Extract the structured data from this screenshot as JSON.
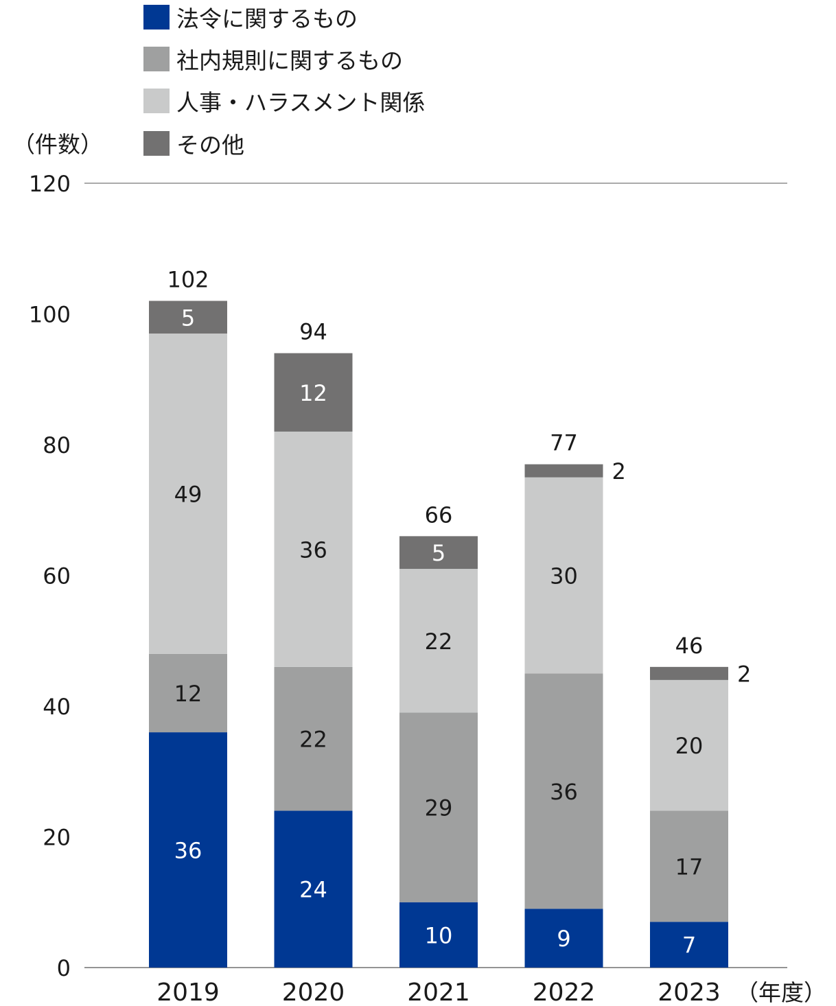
{
  "chart_data": {
    "type": "bar",
    "stacked": true,
    "categories": [
      "2019",
      "2020",
      "2021",
      "2022",
      "2023"
    ],
    "series": [
      {
        "name": "法令に関するもの",
        "color": "#003893",
        "values": [
          36,
          24,
          10,
          9,
          7
        ]
      },
      {
        "name": "社内規則に関するもの",
        "color": "#9fa0a0",
        "values": [
          12,
          22,
          29,
          36,
          17
        ]
      },
      {
        "name": "人事・ハラスメント関係",
        "color": "#c9caca",
        "values": [
          49,
          36,
          22,
          30,
          20
        ]
      },
      {
        "name": "その他",
        "color": "#727171",
        "values": [
          5,
          12,
          5,
          2,
          2
        ]
      }
    ],
    "totals": [
      102,
      94,
      66,
      77,
      46
    ],
    "ylabel": "（件数）",
    "xlabel": "（年度）",
    "ylim": [
      0,
      120
    ],
    "yticks": [
      0,
      20,
      40,
      60,
      80,
      100,
      120
    ],
    "grid": "top line at 120 only",
    "legend_position": "top-left",
    "segment_label_colors": [
      "#ffffff",
      "#1a1a1a",
      "#1a1a1a",
      "#ffffff"
    ]
  }
}
